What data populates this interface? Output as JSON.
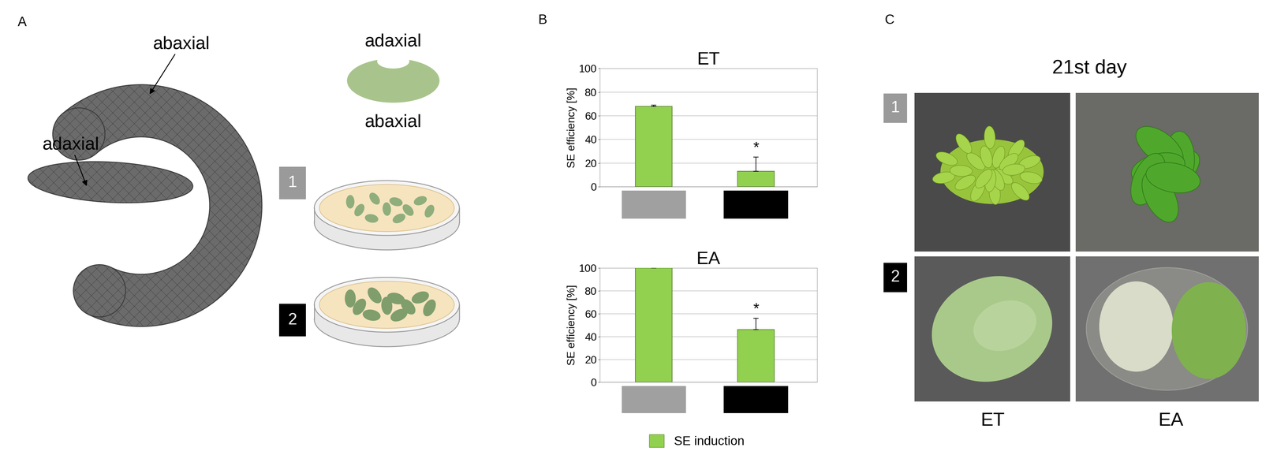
{
  "figure": {
    "panel_a": {
      "label": "A",
      "sem_labels": [
        "abaxial",
        "adaxial"
      ],
      "schematic_labels": [
        "adaxial",
        "abaxial"
      ],
      "groups": [
        "1",
        "2"
      ]
    },
    "panel_b": {
      "label": "B",
      "legend_entry": "SE induction"
    },
    "panel_c": {
      "label": "C",
      "title": "21st day",
      "rows": [
        "1",
        "2"
      ],
      "columns": [
        "ET",
        "EA"
      ]
    }
  },
  "chart_data": [
    {
      "type": "bar",
      "title": "ET",
      "categories": [
        "1",
        "2"
      ],
      "values": [
        68,
        13
      ],
      "errors": [
        1,
        12
      ],
      "annotations": [
        {
          "category": "2",
          "text": "*"
        }
      ],
      "ylabel": "SE efficiency [%]",
      "ylim": [
        0,
        100
      ],
      "yticks": [
        0,
        20,
        40,
        60,
        80,
        100
      ],
      "grid": true,
      "color": "#92d050"
    },
    {
      "type": "bar",
      "title": "EA",
      "categories": [
        "1",
        "2"
      ],
      "values": [
        100,
        46
      ],
      "errors": [
        0,
        10
      ],
      "annotations": [
        {
          "category": "2",
          "text": "*"
        }
      ],
      "ylabel": "SE efficiency [%]",
      "ylim": [
        0,
        100
      ],
      "yticks": [
        0,
        20,
        40,
        60,
        80,
        100
      ],
      "grid": true,
      "color": "#92d050"
    }
  ]
}
